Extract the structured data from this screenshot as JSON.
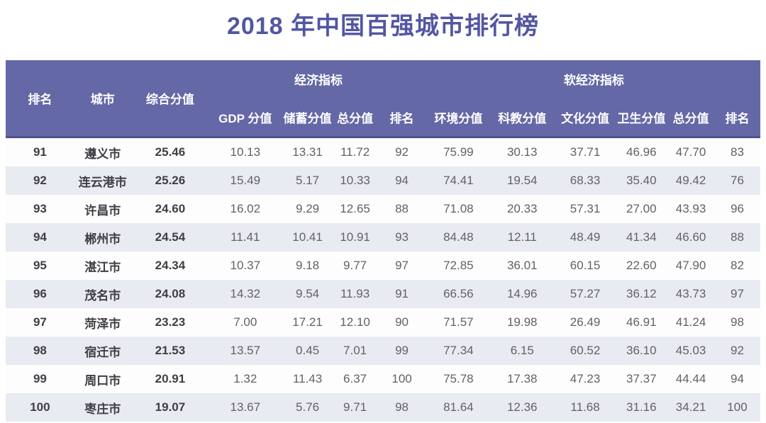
{
  "title": "2018 年中国百强城市排行榜",
  "colors": {
    "title_text": "#5256a2",
    "header_bg": "#6568a6",
    "header_text": "#ffffff",
    "stripe_row_bg": "#e9ebf2",
    "body_text": "#616266"
  },
  "chart_data": {
    "type": "table",
    "title": "2018 年中国百强城市排行榜",
    "left_columns": [
      "排名",
      "城市",
      "综合分值"
    ],
    "groups": [
      {
        "label": "经济指标",
        "columns": [
          "GDP 分值",
          "储蓄分值",
          "总分值",
          "排名"
        ]
      },
      {
        "label": "软经济指标",
        "columns": [
          "环境分值",
          "科教分值",
          "文化分值",
          "卫生分值",
          "总分值",
          "排名"
        ]
      }
    ],
    "rows": [
      [
        "91",
        "遵义市",
        "25.46",
        "10.13",
        "13.31",
        "11.72",
        "92",
        "75.99",
        "30.13",
        "37.71",
        "46.96",
        "47.70",
        "83"
      ],
      [
        "92",
        "连云港市",
        "25.26",
        "15.49",
        "5.17",
        "10.33",
        "94",
        "74.41",
        "19.54",
        "68.33",
        "35.40",
        "49.42",
        "76"
      ],
      [
        "93",
        "许昌市",
        "24.60",
        "16.02",
        "9.29",
        "12.65",
        "88",
        "71.08",
        "20.33",
        "57.31",
        "27.00",
        "43.93",
        "96"
      ],
      [
        "94",
        "郴州市",
        "24.54",
        "11.41",
        "10.41",
        "10.91",
        "93",
        "84.48",
        "12.11",
        "48.49",
        "41.34",
        "46.60",
        "88"
      ],
      [
        "95",
        "湛江市",
        "24.34",
        "10.37",
        "9.18",
        "9.77",
        "97",
        "72.85",
        "36.01",
        "60.15",
        "22.60",
        "47.90",
        "82"
      ],
      [
        "96",
        "茂名市",
        "24.08",
        "14.32",
        "9.54",
        "11.93",
        "91",
        "66.56",
        "14.96",
        "57.27",
        "36.12",
        "43.73",
        "97"
      ],
      [
        "97",
        "菏泽市",
        "23.23",
        "7.00",
        "17.21",
        "12.10",
        "90",
        "71.57",
        "19.98",
        "26.49",
        "46.91",
        "41.24",
        "98"
      ],
      [
        "98",
        "宿迁市",
        "21.53",
        "13.57",
        "0.45",
        "7.01",
        "99",
        "77.34",
        "6.15",
        "60.52",
        "36.10",
        "45.03",
        "92"
      ],
      [
        "99",
        "周口市",
        "20.91",
        "1.32",
        "11.43",
        "6.37",
        "100",
        "75.78",
        "17.38",
        "47.23",
        "37.37",
        "44.44",
        "94"
      ],
      [
        "100",
        "枣庄市",
        "19.07",
        "13.67",
        "5.76",
        "9.71",
        "98",
        "81.64",
        "12.36",
        "11.68",
        "31.16",
        "34.21",
        "100"
      ]
    ]
  }
}
